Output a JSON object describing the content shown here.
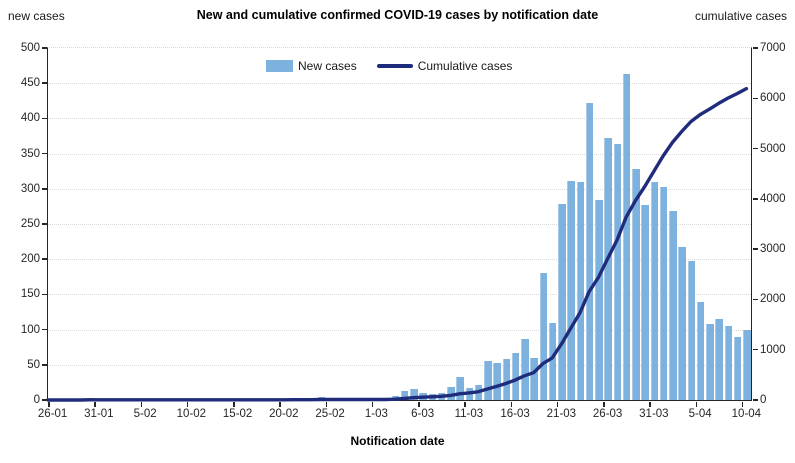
{
  "header": {
    "left_axis_title": "new cases",
    "title": "New and cumulative confirmed COVID-19 cases by notification date",
    "right_axis_title": "cumulative cases"
  },
  "legend": {
    "new_cases_label": "New cases",
    "cumulative_label": "Cumulative cases"
  },
  "x_axis_title": "Notification date",
  "colors": {
    "bar_fill": "#7EB2DE",
    "bar_edge": "#A9CBE8",
    "line": "#1F2C7C",
    "grid": "#D9D9D9",
    "axis": "#262626"
  },
  "chart_data": {
    "type": "bar+line combo",
    "title": "New and cumulative confirmed COVID-19 cases by notification date",
    "xlabel": "Notification date",
    "left_ylabel": "new cases",
    "right_ylabel": "cumulative cases",
    "left_ylim": [
      0,
      500
    ],
    "left_ytick_step": 50,
    "right_ylim": [
      0,
      7000
    ],
    "right_ytick_step": 1000,
    "grid": "horizontal dotted",
    "legend_position": "top center inside plot",
    "x_tick_label_every": 5,
    "x_tick_labels": [
      "26-01",
      "31-01",
      "5-02",
      "10-02",
      "15-02",
      "20-02",
      "25-02",
      "1-03",
      "6-03",
      "11-03",
      "16-03",
      "21-03",
      "26-03",
      "31-03",
      "5-04",
      "10-04"
    ],
    "categories": [
      "26-01",
      "27-01",
      "28-01",
      "29-01",
      "30-01",
      "31-01",
      "1-02",
      "2-02",
      "3-02",
      "4-02",
      "5-02",
      "6-02",
      "7-02",
      "8-02",
      "9-02",
      "10-02",
      "11-02",
      "12-02",
      "13-02",
      "14-02",
      "15-02",
      "16-02",
      "17-02",
      "18-02",
      "19-02",
      "20-02",
      "21-02",
      "22-02",
      "23-02",
      "24-02",
      "25-02",
      "26-02",
      "27-02",
      "28-02",
      "29-02",
      "1-03",
      "2-03",
      "3-03",
      "4-03",
      "5-03",
      "6-03",
      "7-03",
      "8-03",
      "9-03",
      "10-03",
      "11-03",
      "12-03",
      "13-03",
      "14-03",
      "15-03",
      "16-03",
      "17-03",
      "18-03",
      "19-03",
      "20-03",
      "21-03",
      "22-03",
      "23-03",
      "24-03",
      "25-03",
      "26-03",
      "27-03",
      "28-03",
      "29-03",
      "30-03",
      "31-03",
      "1-04",
      "2-04",
      "3-04",
      "4-04",
      "5-04",
      "6-04",
      "7-04",
      "8-04",
      "9-04",
      "10-04"
    ],
    "series": [
      {
        "name": "New cases",
        "type": "bar",
        "axis": "left",
        "values": [
          0,
          0,
          0,
          0,
          3,
          0,
          0,
          0,
          0,
          0,
          0,
          0,
          0,
          0,
          0,
          0,
          0,
          0,
          0,
          0,
          0,
          0,
          0,
          0,
          0,
          0,
          3,
          0,
          0,
          4,
          0,
          0,
          0,
          0,
          0,
          0,
          0,
          6,
          13,
          16,
          10,
          8,
          10,
          18,
          33,
          17,
          22,
          55,
          52,
          58,
          67,
          87,
          60,
          181,
          110,
          278,
          311,
          310,
          422,
          284,
          372,
          363,
          463,
          328,
          277,
          309,
          302,
          269,
          217,
          198,
          139,
          108,
          115,
          105,
          90,
          100
        ]
      },
      {
        "name": "Cumulative cases",
        "type": "line",
        "axis": "right",
        "values": [
          0,
          0,
          0,
          0,
          3,
          3,
          3,
          3,
          3,
          3,
          3,
          3,
          3,
          3,
          3,
          3,
          3,
          3,
          3,
          3,
          3,
          3,
          3,
          3,
          3,
          3,
          6,
          6,
          6,
          10,
          10,
          10,
          10,
          10,
          10,
          10,
          10,
          16,
          29,
          45,
          55,
          63,
          73,
          91,
          124,
          141,
          163,
          218,
          270,
          328,
          395,
          482,
          542,
          723,
          833,
          1111,
          1422,
          1732,
          2154,
          2438,
          2810,
          3173,
          3636,
          3964,
          4241,
          4550,
          4852,
          5121,
          5338,
          5536,
          5675,
          5783,
          5898,
          6003,
          6093,
          6193
        ]
      }
    ]
  }
}
